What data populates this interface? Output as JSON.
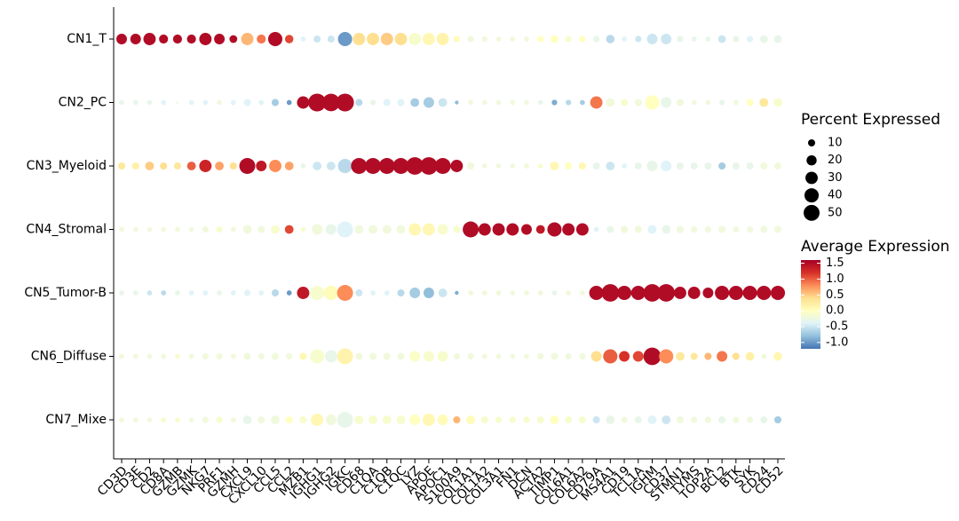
{
  "chart_data": {
    "type": "dot",
    "categories": [
      "CD3D",
      "CD3E",
      "CD2",
      "CD8A",
      "GZMB",
      "GZMK",
      "NKG7",
      "PRF1",
      "GZMH",
      "CXCL9",
      "CXCL10",
      "CCL5",
      "CCL2",
      "MZB1",
      "IGHG1",
      "IGHG2",
      "IGKC",
      "CD68",
      "C1QA",
      "C1QB",
      "C1QC",
      "LYZ",
      "APOE",
      "APOC1",
      "S100A9",
      "COL1A1",
      "COL1A2",
      "COL3A1",
      "FN1",
      "DCN",
      "ACTA2",
      "TIMP1",
      "COL6A1",
      "COL6A2",
      "CD79A",
      "MS4A1",
      "CD19",
      "TCL1A",
      "IGHM",
      "CD37",
      "STMN1",
      "TYMS",
      "TOP2A",
      "BCL2",
      "BTK",
      "SYK",
      "CD24",
      "CD52"
    ],
    "rows": [
      "CN1_T",
      "CN2_PC",
      "CN3_Myeloid",
      "CN4_Stromal",
      "CN5_Tumor-B",
      "CN6_Diffuse",
      "CN7_Mixe"
    ],
    "percent": [
      [
        22,
        22,
        30,
        16,
        16,
        16,
        30,
        22,
        12,
        30,
        16,
        40,
        14,
        5,
        10,
        10,
        40,
        30,
        30,
        30,
        30,
        30,
        30,
        30,
        8,
        8,
        6,
        5,
        5,
        5,
        8,
        12,
        8,
        8,
        8,
        14,
        5,
        8,
        22,
        22,
        8,
        5,
        5,
        12,
        8,
        8,
        12,
        12
      ],
      [
        5,
        5,
        5,
        5,
        1,
        5,
        5,
        5,
        5,
        10,
        5,
        10,
        5,
        30,
        62,
        60,
        62,
        10,
        6,
        10,
        10,
        15,
        22,
        15,
        3,
        5,
        5,
        5,
        5,
        5,
        5,
        6,
        6,
        5,
        30,
        15,
        10,
        10,
        40,
        22,
        10,
        5,
        5,
        6,
        5,
        10,
        15,
        15
      ],
      [
        10,
        10,
        15,
        10,
        10,
        15,
        30,
        15,
        10,
        50,
        22,
        30,
        15,
        5,
        15,
        15,
        40,
        50,
        50,
        50,
        50,
        60,
        60,
        50,
        30,
        10,
        5,
        5,
        5,
        5,
        5,
        15,
        10,
        10,
        10,
        15,
        5,
        10,
        22,
        22,
        10,
        10,
        10,
        10,
        10,
        10,
        10,
        10
      ],
      [
        5,
        5,
        5,
        5,
        5,
        5,
        8,
        8,
        5,
        15,
        10,
        15,
        15,
        5,
        22,
        22,
        50,
        15,
        15,
        15,
        15,
        30,
        30,
        22,
        10,
        50,
        30,
        30,
        30,
        22,
        15,
        40,
        30,
        30,
        5,
        10,
        10,
        10,
        15,
        15,
        10,
        8,
        8,
        10,
        8,
        8,
        10,
        10
      ],
      [
        5,
        5,
        5,
        5,
        5,
        5,
        5,
        5,
        5,
        8,
        5,
        10,
        5,
        30,
        40,
        40,
        50,
        10,
        5,
        5,
        10,
        22,
        22,
        15,
        3,
        5,
        5,
        5,
        5,
        5,
        5,
        5,
        5,
        5,
        40,
        60,
        40,
        40,
        60,
        60,
        30,
        30,
        22,
        40,
        40,
        40,
        40,
        40
      ],
      [
        5,
        5,
        5,
        5,
        5,
        5,
        8,
        8,
        5,
        10,
        8,
        10,
        8,
        10,
        40,
        30,
        50,
        10,
        10,
        10,
        10,
        22,
        22,
        22,
        8,
        8,
        5,
        5,
        5,
        5,
        8,
        10,
        8,
        8,
        22,
        40,
        22,
        22,
        60,
        40,
        15,
        10,
        10,
        22,
        10,
        15,
        5,
        15
      ],
      [
        5,
        5,
        5,
        5,
        5,
        5,
        8,
        8,
        5,
        15,
        10,
        15,
        10,
        10,
        30,
        22,
        50,
        15,
        15,
        15,
        15,
        22,
        30,
        22,
        10,
        15,
        10,
        8,
        8,
        8,
        10,
        15,
        10,
        10,
        10,
        15,
        8,
        10,
        15,
        15,
        10,
        8,
        8,
        10,
        8,
        8,
        10,
        10
      ]
    ],
    "expression": [
      [
        1.5,
        1.5,
        1.5,
        1.5,
        1.5,
        1.5,
        1.5,
        1.5,
        1.5,
        0.6,
        0.9,
        1.5,
        1.1,
        -0.4,
        -0.5,
        -0.5,
        -1.0,
        0.4,
        0.4,
        0.5,
        0.4,
        -0.1,
        0.1,
        0.15,
        0.05,
        -0.2,
        -0.2,
        -0.2,
        -0.2,
        -0.2,
        0.0,
        0.0,
        -0.1,
        0.0,
        -0.3,
        -0.6,
        -0.4,
        -0.5,
        -0.5,
        -0.5,
        -0.3,
        -0.3,
        -0.3,
        -0.5,
        -0.3,
        -0.4,
        -0.3,
        -0.3
      ],
      [
        -0.3,
        -0.3,
        -0.3,
        -0.4,
        -0.2,
        -0.4,
        -0.4,
        -0.2,
        -0.4,
        -0.4,
        -0.4,
        -0.7,
        -1.0,
        1.5,
        1.5,
        1.5,
        1.5,
        -0.6,
        -0.3,
        -0.4,
        -0.4,
        -0.7,
        -0.7,
        -0.5,
        -0.8,
        -0.2,
        -0.2,
        -0.2,
        -0.2,
        -0.2,
        -0.3,
        -0.9,
        -0.6,
        -0.7,
        0.9,
        -0.2,
        -0.1,
        -0.2,
        0.0,
        -0.3,
        -0.2,
        -0.2,
        -0.2,
        -0.3,
        -0.2,
        0.0,
        0.3,
        -0.1
      ],
      [
        0.3,
        0.2,
        0.5,
        0.4,
        0.3,
        1.0,
        1.3,
        0.7,
        0.4,
        1.5,
        1.4,
        0.8,
        0.7,
        -0.3,
        -0.5,
        -0.5,
        -0.6,
        1.5,
        1.5,
        1.5,
        1.5,
        1.5,
        1.5,
        1.5,
        1.5,
        -0.2,
        -0.2,
        -0.2,
        -0.2,
        -0.2,
        -0.1,
        0.1,
        0.0,
        0.1,
        -0.3,
        -0.5,
        -0.4,
        -0.3,
        -0.3,
        -0.4,
        -0.3,
        -0.3,
        -0.3,
        -0.7,
        -0.3,
        -0.3,
        -0.2,
        -0.2
      ],
      [
        -0.2,
        -0.2,
        -0.2,
        -0.2,
        -0.2,
        -0.2,
        -0.2,
        -0.1,
        -0.2,
        -0.2,
        -0.2,
        -0.1,
        1.1,
        -0.1,
        -0.2,
        -0.3,
        -0.4,
        -0.2,
        -0.2,
        -0.2,
        -0.2,
        0.1,
        0.1,
        -0.1,
        -0.1,
        1.5,
        1.5,
        1.5,
        1.5,
        1.5,
        1.4,
        1.5,
        1.5,
        1.5,
        -0.4,
        -0.3,
        -0.2,
        -0.2,
        -0.4,
        -0.3,
        -0.2,
        -0.2,
        -0.2,
        -0.2,
        -0.2,
        -0.2,
        -0.2,
        -0.2
      ],
      [
        -0.3,
        -0.3,
        -0.5,
        -0.6,
        -0.3,
        -0.4,
        -0.4,
        -0.3,
        -0.4,
        -0.4,
        -0.4,
        -0.6,
        -1.0,
        1.4,
        -0.1,
        0.05,
        0.8,
        -0.5,
        -0.4,
        -0.4,
        -0.6,
        -0.7,
        -0.8,
        -0.5,
        -0.9,
        -0.2,
        -0.2,
        -0.2,
        -0.2,
        -0.2,
        -0.2,
        -0.3,
        -0.2,
        -0.2,
        1.5,
        1.5,
        1.5,
        1.5,
        1.5,
        1.5,
        1.5,
        1.5,
        1.5,
        1.5,
        1.5,
        1.5,
        1.5,
        1.5
      ],
      [
        -0.2,
        -0.2,
        -0.2,
        -0.2,
        -0.1,
        -0.2,
        -0.2,
        -0.2,
        -0.2,
        -0.2,
        -0.2,
        -0.2,
        -0.2,
        0.1,
        -0.1,
        -0.3,
        0.15,
        -0.2,
        -0.2,
        -0.2,
        -0.2,
        -0.05,
        -0.1,
        -0.1,
        -0.2,
        -0.2,
        -0.2,
        -0.2,
        -0.2,
        -0.2,
        -0.2,
        -0.2,
        -0.2,
        -0.2,
        0.4,
        1.0,
        1.2,
        1.1,
        1.5,
        0.8,
        0.3,
        0.3,
        0.6,
        0.9,
        0.4,
        0.2,
        -0.2,
        0.1
      ],
      [
        -0.2,
        -0.2,
        -0.2,
        -0.1,
        -0.1,
        -0.2,
        -0.2,
        -0.1,
        -0.2,
        -0.3,
        -0.2,
        -0.2,
        0.0,
        -0.1,
        0.1,
        -0.2,
        -0.3,
        -0.1,
        -0.1,
        -0.1,
        -0.1,
        0.0,
        0.1,
        0.05,
        0.6,
        0.05,
        -0.1,
        -0.1,
        -0.1,
        -0.1,
        -0.1,
        0.0,
        -0.1,
        -0.1,
        -0.5,
        -0.3,
        -0.2,
        -0.3,
        -0.4,
        -0.5,
        -0.2,
        -0.2,
        -0.2,
        -0.3,
        -0.2,
        -0.2,
        -0.3,
        -0.7
      ]
    ],
    "size_legend": {
      "title": "Percent Expressed",
      "values": [
        10,
        20,
        30,
        40,
        50
      ]
    },
    "color_legend": {
      "title": "Average Expression",
      "clim": [
        -1.2,
        1.6
      ],
      "ticks": [
        1.5,
        {
          "value": 1,
          "label": "1.0"
        },
        0.5,
        {
          "value": 0,
          "label": "0.0"
        },
        -0.5,
        {
          "value": -1,
          "label": "-1.0"
        }
      ]
    },
    "colormap": [
      "#4575b4",
      "#91bfdb",
      "#e0f3f8",
      "#ffffbf",
      "#fee090",
      "#fc8d59",
      "#d73027",
      "#a50026"
    ]
  }
}
